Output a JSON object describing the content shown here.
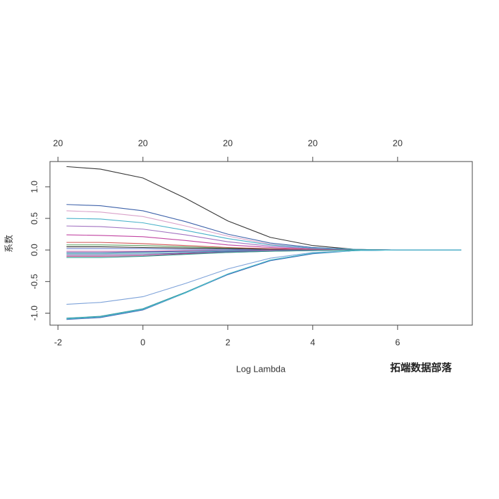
{
  "chart_data": {
    "type": "line",
    "xlabel": "Log Lambda",
    "ylabel": "系数",
    "watermark": "拓端数据部落",
    "xlim": [
      -2.19,
      7.76
    ],
    "ylim": [
      -1.19,
      1.4
    ],
    "xticks": [
      -2,
      0,
      2,
      4,
      6
    ],
    "x2ticks": [
      {
        "value": -2,
        "label": "20"
      },
      {
        "value": 0,
        "label": "20"
      },
      {
        "value": 2,
        "label": "20"
      },
      {
        "value": 4,
        "label": "20"
      },
      {
        "value": 6,
        "label": "20"
      }
    ],
    "yticks": [
      {
        "value": -1,
        "label": "-1.0"
      },
      {
        "value": -0.5,
        "label": "-0.5"
      },
      {
        "value": 0,
        "label": "0.0"
      },
      {
        "value": 0.5,
        "label": "0.5"
      },
      {
        "value": 1,
        "label": "1.0"
      }
    ],
    "x": [
      -1.8,
      -1,
      0,
      1,
      2,
      3,
      4,
      5,
      6,
      7,
      7.5
    ],
    "series": [
      {
        "color": "#333333",
        "values": [
          1.32,
          1.28,
          1.14,
          0.82,
          0.46,
          0.2,
          0.07,
          0.01,
          0,
          0,
          0
        ]
      },
      {
        "color": "#3a5fa8",
        "values": [
          0.72,
          0.7,
          0.62,
          0.45,
          0.25,
          0.11,
          0.04,
          0.01,
          0,
          0,
          0
        ]
      },
      {
        "color": "#d9a0c8",
        "values": [
          0.62,
          0.6,
          0.53,
          0.38,
          0.22,
          0.09,
          0.03,
          0.01,
          0,
          0,
          0
        ]
      },
      {
        "color": "#45b0c8",
        "values": [
          0.5,
          0.49,
          0.43,
          0.31,
          0.18,
          0.08,
          0.03,
          0.01,
          0,
          0,
          0
        ]
      },
      {
        "color": "#a070c0",
        "values": [
          0.38,
          0.37,
          0.33,
          0.24,
          0.13,
          0.06,
          0.02,
          0,
          0,
          0,
          0
        ]
      },
      {
        "color": "#c040a0",
        "values": [
          0.24,
          0.23,
          0.21,
          0.15,
          0.08,
          0.04,
          0.01,
          0,
          0,
          0,
          0
        ]
      },
      {
        "color": "#d05050",
        "values": [
          0.12,
          0.12,
          0.1,
          0.07,
          0.04,
          0.02,
          0.01,
          0,
          0,
          0,
          0
        ]
      },
      {
        "color": "#60a060",
        "values": [
          0.08,
          0.08,
          0.07,
          0.05,
          0.03,
          0.01,
          0,
          0,
          0,
          0,
          0
        ]
      },
      {
        "color": "#222222",
        "values": [
          0.05,
          0.05,
          0.04,
          0.03,
          0.02,
          0.01,
          0,
          0,
          0,
          0,
          0
        ]
      },
      {
        "color": "#7080d0",
        "values": [
          0.02,
          0.02,
          0.02,
          0.01,
          0.01,
          0,
          0,
          0,
          0,
          0,
          0
        ]
      },
      {
        "color": "#d070b0",
        "values": [
          -0.02,
          -0.02,
          -0.02,
          -0.01,
          -0.01,
          0,
          0,
          0,
          0,
          0,
          0
        ]
      },
      {
        "color": "#3050a0",
        "values": [
          -0.04,
          -0.04,
          -0.03,
          -0.02,
          -0.01,
          -0.01,
          0,
          0,
          0,
          0,
          0
        ]
      },
      {
        "color": "#40a0b0",
        "values": [
          -0.06,
          -0.06,
          -0.05,
          -0.04,
          -0.02,
          -0.01,
          0,
          0,
          0,
          0,
          0
        ]
      },
      {
        "color": "#8060b0",
        "values": [
          -0.08,
          -0.08,
          -0.07,
          -0.05,
          -0.03,
          -0.01,
          0,
          0,
          0,
          0,
          0
        ]
      },
      {
        "color": "#b04080",
        "values": [
          -0.1,
          -0.1,
          -0.09,
          -0.06,
          -0.04,
          -0.02,
          -0.01,
          0,
          0,
          0,
          0
        ]
      },
      {
        "color": "#30a090",
        "values": [
          -0.12,
          -0.12,
          -0.1,
          -0.07,
          -0.04,
          -0.02,
          -0.01,
          0,
          0,
          0,
          0
        ]
      },
      {
        "color": "#7aa0d8",
        "values": [
          -0.86,
          -0.83,
          -0.74,
          -0.53,
          -0.3,
          -0.13,
          -0.04,
          -0.01,
          0,
          0,
          0
        ]
      },
      {
        "color": "#2a8f9a",
        "values": [
          -1.08,
          -1.05,
          -0.93,
          -0.67,
          -0.38,
          -0.16,
          -0.05,
          -0.01,
          0,
          0,
          0
        ]
      },
      {
        "color": "#3a60b0",
        "values": [
          -1.1,
          -1.07,
          -0.95,
          -0.68,
          -0.39,
          -0.17,
          -0.06,
          -0.01,
          0,
          0,
          0
        ]
      },
      {
        "color": "#50c0d0",
        "values": [
          -1.09,
          -1.06,
          -0.94,
          -0.68,
          -0.38,
          -0.16,
          -0.05,
          -0.01,
          0,
          0,
          0
        ]
      }
    ]
  }
}
